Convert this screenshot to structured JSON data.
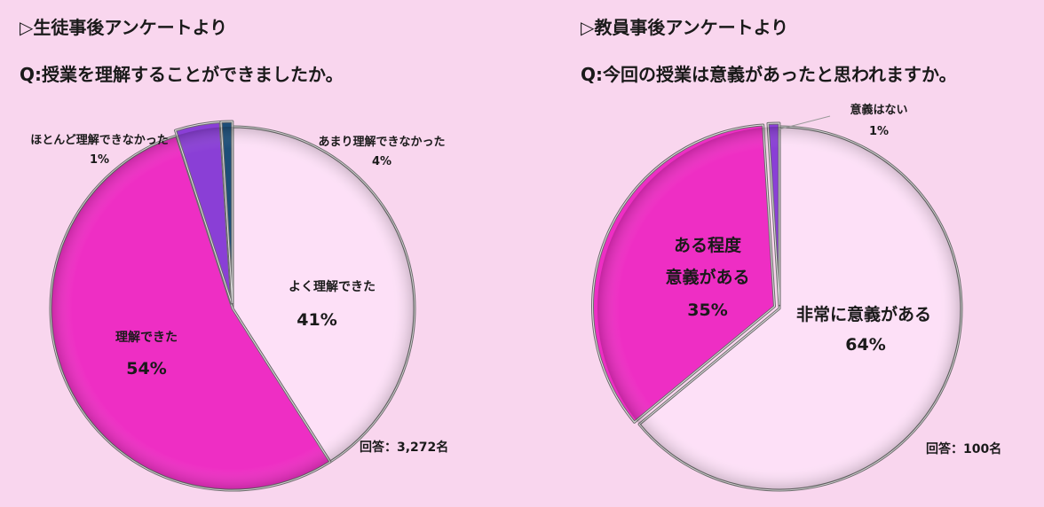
{
  "colors": {
    "background": "#f9d6ee",
    "light_pink": "#fde0f7",
    "magenta": "#ee2ec4",
    "purple": "#8a3fd6",
    "navy": "#1d4e78",
    "outline": "#6b6b6b"
  },
  "chart_data": [
    {
      "type": "pie",
      "section_title": "▷生徒事後アンケートより",
      "title": "Q:授業を理解することができましたか。",
      "respondents": "回答：3,272名",
      "slices": [
        {
          "label": "よく理解できた",
          "value": 41,
          "value_label": "41%",
          "color": "#fde0f7"
        },
        {
          "label": "理解できた",
          "value": 54,
          "value_label": "54%",
          "color": "#ee2ec4"
        },
        {
          "label": "あまり理解できなかった",
          "value": 4,
          "value_label": "4%",
          "color": "#8a3fd6"
        },
        {
          "label": "ほとんど理解できなかった",
          "value": 1,
          "value_label": "1%",
          "color": "#1d4e78"
        }
      ]
    },
    {
      "type": "pie",
      "section_title": "▷教員事後アンケートより",
      "title": "Q:今回の授業は意義があったと思われますか。",
      "respondents": "回答：100名",
      "slices": [
        {
          "label": "非常に意義がある",
          "value": 64,
          "value_label": "64%",
          "color": "#fde0f7"
        },
        {
          "label_lines": [
            "ある程度",
            "意義がある"
          ],
          "value": 35,
          "value_label": "35%",
          "color": "#ee2ec4"
        },
        {
          "label": "意義はない",
          "value": 1,
          "value_label": "1%",
          "color": "#8a3fd6"
        }
      ]
    }
  ]
}
